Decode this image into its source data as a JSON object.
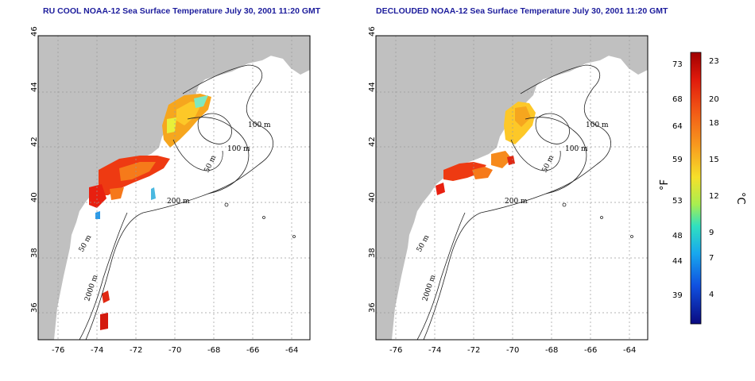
{
  "titles": {
    "left": "RU COOL NOAA-12 Sea Surface Temperature July 30, 2001 11:20 GMT",
    "right": "DECLOUDED NOAA-12 Sea Surface Temperature July 30, 2001 11:20 GMT"
  },
  "map": {
    "lon_ticks": [
      "-76",
      "-74",
      "-72",
      "-70",
      "-68",
      "-66",
      "-64"
    ],
    "lat_ticks": [
      "36",
      "38",
      "40",
      "42",
      "44",
      "46"
    ],
    "contour_labels_left": [
      "100 m",
      "100 m",
      "50 m",
      "200 m",
      "50 m",
      "2000 m"
    ],
    "contour_labels_right": [
      "100 m",
      "100 m",
      "50 m",
      "200 m",
      "50 m",
      "2000 m"
    ],
    "land_color": "#c0c0c0",
    "ocean_color": "#ffffff",
    "grid_color": "#9a9a9a"
  },
  "colorbar": {
    "f_unit": "°F",
    "c_unit": "°C",
    "f_ticks": [
      "73",
      "68",
      "64",
      "59",
      "53",
      "48",
      "44",
      "39"
    ],
    "c_ticks": [
      "23",
      "20",
      "18",
      "15",
      "12",
      "9",
      "7",
      "4"
    ],
    "colors": [
      "#c40000",
      "#ee2a10",
      "#f6781a",
      "#fdbf22",
      "#f4f02c",
      "#8ff06a",
      "#22d8e8",
      "#1a7ae8",
      "#1414c8",
      "#0a0a80"
    ]
  }
}
